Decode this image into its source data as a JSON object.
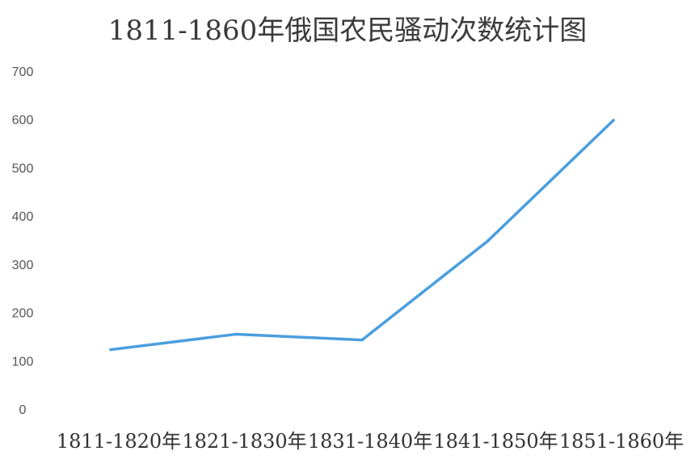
{
  "chart_data": {
    "type": "line",
    "title": "1811-1860年俄国农民骚动次数统计图",
    "categories": [
      "1811-1820年",
      "1821-1830年",
      "1831-1840年",
      "1841-1850年",
      "1851-1860年"
    ],
    "series": [
      {
        "values": [
          123,
          155,
          143,
          348,
          598
        ]
      }
    ],
    "yticks": [
      "0",
      "100",
      "200",
      "300",
      "400",
      "500",
      "600",
      "700"
    ],
    "ylim": [
      0,
      700
    ],
    "grid": false,
    "line_color": "#4a9ede"
  }
}
